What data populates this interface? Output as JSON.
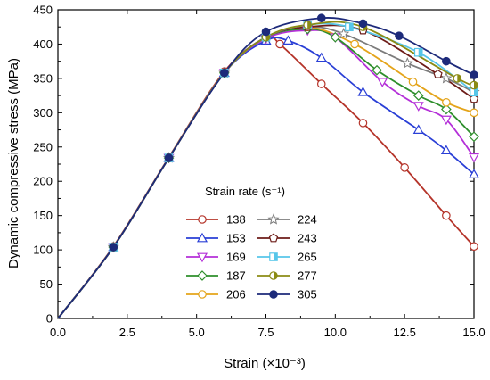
{
  "chart_data": {
    "type": "line",
    "title": "",
    "xlabel": "Strain (×10⁻³)",
    "ylabel": "Dynamic compressive stress (MPa)",
    "xlim": [
      0,
      15
    ],
    "ylim": [
      0,
      450
    ],
    "xticks": [
      "0.0",
      "2.5",
      "5.0",
      "7.5",
      "10.0",
      "12.5",
      "15.0"
    ],
    "yticks": [
      "0",
      "50",
      "100",
      "150",
      "200",
      "250",
      "300",
      "350",
      "400",
      "450"
    ],
    "grid": false,
    "legend": {
      "title": "Strain rate (s⁻¹)",
      "placement": "bottom-center",
      "columns": 2
    },
    "series": [
      {
        "name": "138",
        "color": "#b5342a",
        "marker": "circle-open",
        "x": [
          0,
          2,
          4,
          6,
          7.5,
          8.0,
          9.5,
          11,
          12.5,
          14,
          15
        ],
        "y": [
          0,
          105,
          235,
          360,
          410,
          400,
          342,
          285,
          220,
          150,
          105
        ]
      },
      {
        "name": "153",
        "color": "#2a3fd6",
        "marker": "triangle-up-open",
        "x": [
          0,
          2,
          4,
          6,
          7.5,
          8.3,
          9.5,
          11,
          13,
          14,
          15
        ],
        "y": [
          0,
          104,
          234,
          358,
          405,
          405,
          380,
          330,
          275,
          245,
          210
        ]
      },
      {
        "name": "169",
        "color": "#b42fd8",
        "marker": "triangle-down-open",
        "x": [
          0,
          2,
          4,
          6,
          7.5,
          9,
          10,
          11.7,
          13,
          14,
          15
        ],
        "y": [
          0,
          104,
          234,
          358,
          408,
          420,
          410,
          345,
          310,
          290,
          235
        ]
      },
      {
        "name": "187",
        "color": "#2e8f2c",
        "marker": "diamond-open",
        "x": [
          0,
          2,
          4,
          6,
          7.5,
          9,
          10,
          11.5,
          13,
          14,
          15
        ],
        "y": [
          0,
          104,
          234,
          358,
          410,
          422,
          410,
          362,
          325,
          305,
          265
        ]
      },
      {
        "name": "206",
        "color": "#e4a41a",
        "marker": "circle-open",
        "x": [
          0,
          2,
          4,
          6,
          7.5,
          9,
          10.7,
          12.8,
          14,
          15
        ],
        "y": [
          0,
          104,
          234,
          358,
          410,
          425,
          400,
          345,
          315,
          300
        ]
      },
      {
        "name": "224",
        "color": "#7c7c7c",
        "marker": "star-open",
        "x": [
          0,
          2,
          4,
          6,
          7.5,
          9,
          10.3,
          12.6,
          14,
          15
        ],
        "y": [
          0,
          104,
          234,
          358,
          410,
          425,
          415,
          372,
          350,
          330
        ]
      },
      {
        "name": "243",
        "color": "#6d1c18",
        "marker": "pentagon-open",
        "x": [
          0,
          2,
          4,
          6,
          7.5,
          9,
          11,
          13.7,
          15
        ],
        "y": [
          0,
          104,
          234,
          358,
          410,
          425,
          420,
          356,
          320
        ]
      },
      {
        "name": "265",
        "color": "#57c6e9",
        "marker": "square-half",
        "x": [
          0,
          2,
          4,
          6,
          7.5,
          9,
          10.5,
          13.0,
          15
        ],
        "y": [
          0,
          104,
          234,
          358,
          410,
          428,
          425,
          388,
          330
        ]
      },
      {
        "name": "277",
        "color": "#8b8b14",
        "marker": "circle-half",
        "x": [
          0,
          2,
          4,
          6,
          7.5,
          9,
          11,
          14.4,
          15
        ],
        "y": [
          0,
          104,
          234,
          358,
          410,
          428,
          425,
          350,
          340
        ]
      },
      {
        "name": "305",
        "color": "#1d2a7a",
        "marker": "circle-filled",
        "x": [
          0,
          2,
          4,
          6,
          7.5,
          9.5,
          11,
          12.3,
          14,
          15
        ],
        "y": [
          0,
          104,
          234,
          358,
          418,
          438,
          430,
          412,
          375,
          355
        ]
      }
    ]
  }
}
